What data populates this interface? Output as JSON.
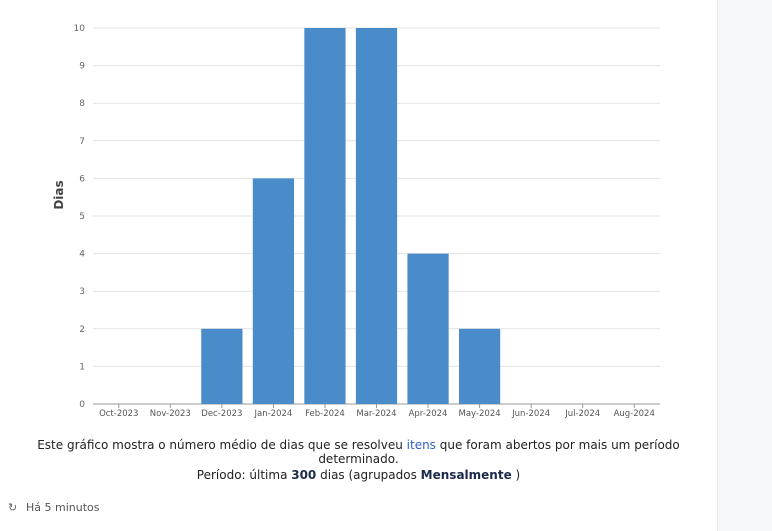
{
  "chart_data": {
    "type": "bar",
    "categories": [
      "Oct-2023",
      "Nov-2023",
      "Dec-2023",
      "Jan-2024",
      "Feb-2024",
      "Mar-2024",
      "Apr-2024",
      "May-2024",
      "Jun-2024",
      "Jul-2024",
      "Aug-2024"
    ],
    "values": [
      0,
      0,
      2,
      6,
      10,
      10,
      4,
      2,
      0,
      0,
      0
    ],
    "ylabel": "Dias",
    "xlabel": "",
    "ylim": [
      0,
      10
    ],
    "yticks": [
      "0",
      "1",
      "2",
      "3",
      "4",
      "5",
      "6",
      "7",
      "8",
      "9",
      "10"
    ],
    "grid": true,
    "bar_color": "#4a8cc9"
  },
  "description": {
    "before": "Este gráfico mostra o número médio de dias que se resolveu ",
    "link": "itens",
    "after": " que foram abertos por mais um período determinado."
  },
  "period": {
    "prefix": "Período: última ",
    "days": "300",
    "middle": " dias (agrupados ",
    "grouping": "Mensalmente",
    "suffix": " )"
  },
  "footer": {
    "icon": "refresh-icon",
    "text": "Há 5 minutos"
  }
}
